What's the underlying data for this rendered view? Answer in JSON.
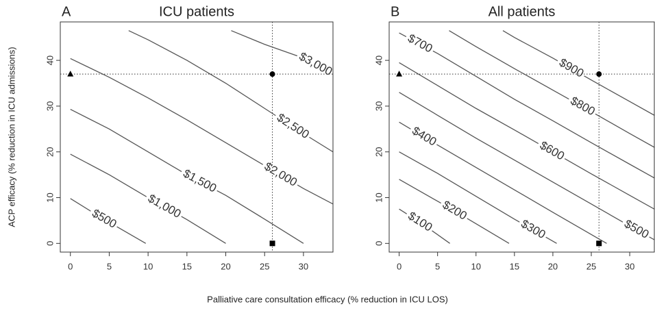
{
  "chart_data": [
    {
      "type": "contour",
      "panel_label": "A",
      "title": "ICU patients",
      "xlim": [
        -1.3,
        33.8
      ],
      "ylim": [
        -1.9,
        48.4
      ],
      "xticks": [
        0,
        5,
        10,
        15,
        20,
        25,
        30
      ],
      "yticks": [
        0,
        10,
        20,
        30,
        40
      ],
      "color": "#555555",
      "contours": [
        {
          "level": 500,
          "label": "$500",
          "x": [
            0,
            4,
            9.7
          ],
          "y": [
            9.8,
            5.6,
            0
          ]
        },
        {
          "level": 1000,
          "label": "$1,000",
          "x": [
            0,
            5,
            10,
            15,
            20
          ],
          "y": [
            19.5,
            15,
            10,
            5.2,
            0
          ]
        },
        {
          "level": 1500,
          "label": "$1,500",
          "x": [
            0,
            5,
            10,
            15,
            20,
            25,
            30
          ],
          "y": [
            29.3,
            25,
            20,
            15,
            10.5,
            5.3,
            0
          ]
        },
        {
          "level": 2000,
          "label": "$2,000",
          "x": [
            0,
            5,
            10,
            15,
            20,
            25,
            30,
            33.8
          ],
          "y": [
            40.4,
            36.3,
            31.8,
            27,
            22,
            17,
            12,
            8.6
          ]
        },
        {
          "level": 2500,
          "label": "$2,500",
          "x": [
            7.5,
            10,
            15,
            20,
            25,
            30,
            33.8
          ],
          "y": [
            46.5,
            44.5,
            40,
            35,
            29.5,
            24,
            20
          ]
        },
        {
          "level": 3000,
          "label": "$3,000",
          "x": [
            20.7,
            25,
            30,
            33.8
          ],
          "y": [
            46.5,
            43.5,
            40.5,
            37
          ]
        }
      ],
      "hlines": [
        37
      ],
      "vlines": [
        26
      ],
      "markers": [
        {
          "shape": "triangle",
          "x": 0,
          "y": 37
        },
        {
          "shape": "circle",
          "x": 26,
          "y": 37
        },
        {
          "shape": "square",
          "x": 26,
          "y": 0
        }
      ]
    },
    {
      "type": "contour",
      "panel_label": "B",
      "title": "All patients",
      "xlim": [
        -1.3,
        33.2
      ],
      "ylim": [
        -1.9,
        48.4
      ],
      "xticks": [
        0,
        5,
        10,
        15,
        20,
        25,
        30
      ],
      "yticks": [
        0,
        10,
        20,
        30,
        40
      ],
      "color": "#555555",
      "contours": [
        {
          "level": 100,
          "label": "$100",
          "x": [
            0,
            3,
            6.6
          ],
          "y": [
            7.5,
            4.3,
            0
          ]
        },
        {
          "level": 200,
          "label": "$200",
          "x": [
            0,
            7,
            14.3
          ],
          "y": [
            14,
            7.3,
            0
          ]
        },
        {
          "level": 300,
          "label": "$300",
          "x": [
            0,
            5,
            10,
            15,
            20.5
          ],
          "y": [
            20,
            15.3,
            10.3,
            5.3,
            0
          ]
        },
        {
          "level": 400,
          "label": "$400",
          "x": [
            0,
            5,
            10,
            15,
            20,
            27
          ],
          "y": [
            26.5,
            21.5,
            16.6,
            11.7,
            6.8,
            0
          ]
        },
        {
          "level": 500,
          "label": "$500",
          "x": [
            0,
            5,
            10,
            15,
            20,
            25,
            30,
            33.2
          ],
          "y": [
            33,
            28,
            23,
            18.2,
            13.4,
            8.6,
            3.8,
            0.8
          ]
        },
        {
          "level": 600,
          "label": "$600",
          "x": [
            0,
            5,
            10,
            15,
            20,
            25,
            30,
            33.2
          ],
          "y": [
            39.5,
            34.5,
            29.5,
            24.8,
            20,
            15.2,
            10.5,
            7.5
          ]
        },
        {
          "level": 700,
          "label": "$700",
          "x": [
            0,
            5,
            10,
            15,
            20,
            25,
            30,
            33.2
          ],
          "y": [
            46,
            41.5,
            36.5,
            31.5,
            26.8,
            22,
            17.3,
            14.3
          ]
        },
        {
          "level": 800,
          "label": "$800",
          "x": [
            6.5,
            10,
            15,
            20,
            25,
            30,
            33.2
          ],
          "y": [
            46.5,
            43,
            38.2,
            33.5,
            28.8,
            24,
            21
          ]
        },
        {
          "level": 900,
          "label": "$900",
          "x": [
            13.5,
            15,
            20,
            25,
            30,
            33.2
          ],
          "y": [
            46.5,
            45,
            40.5,
            35.7,
            31,
            28
          ]
        }
      ],
      "hlines": [
        37
      ],
      "vlines": [
        26
      ],
      "markers": [
        {
          "shape": "triangle",
          "x": 0,
          "y": 37
        },
        {
          "shape": "circle",
          "x": 26,
          "y": 37
        },
        {
          "shape": "square",
          "x": 26,
          "y": 0
        }
      ]
    }
  ],
  "xlabel": "Palliative care consultation efficacy (% reduction in ICU LOS)",
  "ylabel": "ACP efficacy (% reduction in ICU admissions)"
}
